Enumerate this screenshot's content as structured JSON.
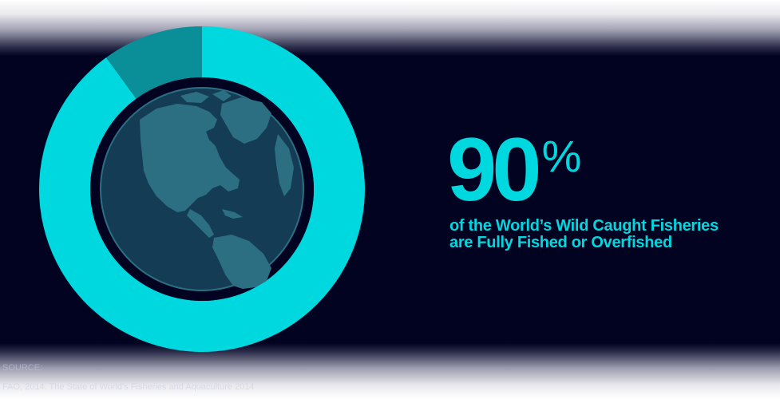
{
  "chart_data": {
    "type": "pie",
    "title": "",
    "slices": [
      {
        "label": "Fully Fished or Overfished",
        "value": 90,
        "color": "#00d8e0"
      },
      {
        "label": "",
        "value": 10,
        "color": "#0a8f99"
      }
    ],
    "donut": true,
    "center_graphic": "earth-globe-icon"
  },
  "headline": {
    "value": "90",
    "unit": "%",
    "line1": "of the World’s Wild Caught Fisheries",
    "line2": "are Fully Fished or Overfished"
  },
  "source": {
    "label": "SOURCE:",
    "citation": "FAO, 2014. The State of World’s Fisheries and Aquaculture 2014"
  },
  "colors": {
    "background": "#020321",
    "accent": "#00d8e0",
    "remainder": "#0a8f99",
    "globe_ocean": "#143d55",
    "globe_land": "#2c6f82"
  }
}
